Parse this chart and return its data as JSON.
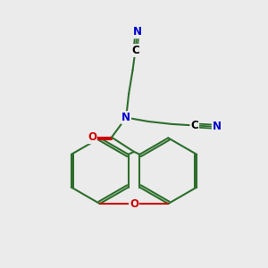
{
  "background_color": "#ebebeb",
  "bond_color": "#2d6e2d",
  "bond_width": 1.5,
  "atom_colors": {
    "N": "#0000cc",
    "O": "#cc0000",
    "C": "#000000"
  },
  "figsize": [
    3.0,
    3.0
  ],
  "dpi": 100
}
